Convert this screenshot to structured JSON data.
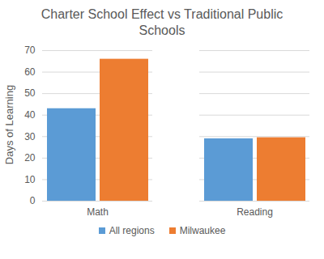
{
  "chart_data": {
    "type": "bar",
    "title": "Charter School Effect vs Traditional Public Schools",
    "y_label": "Days of Learning",
    "categories": [
      "Math",
      "Reading"
    ],
    "series": [
      {
        "name": "All regions",
        "color": "#5b9bd5",
        "values": [
          43,
          29
        ]
      },
      {
        "name": "Milwaukee",
        "color": "#ed7d31",
        "values": [
          66,
          29.5
        ]
      }
    ],
    "ylim": [
      0,
      70
    ],
    "yticks": [
      0,
      10,
      20,
      30,
      40,
      50,
      60,
      70
    ],
    "grid": true,
    "legend": "bottom"
  }
}
